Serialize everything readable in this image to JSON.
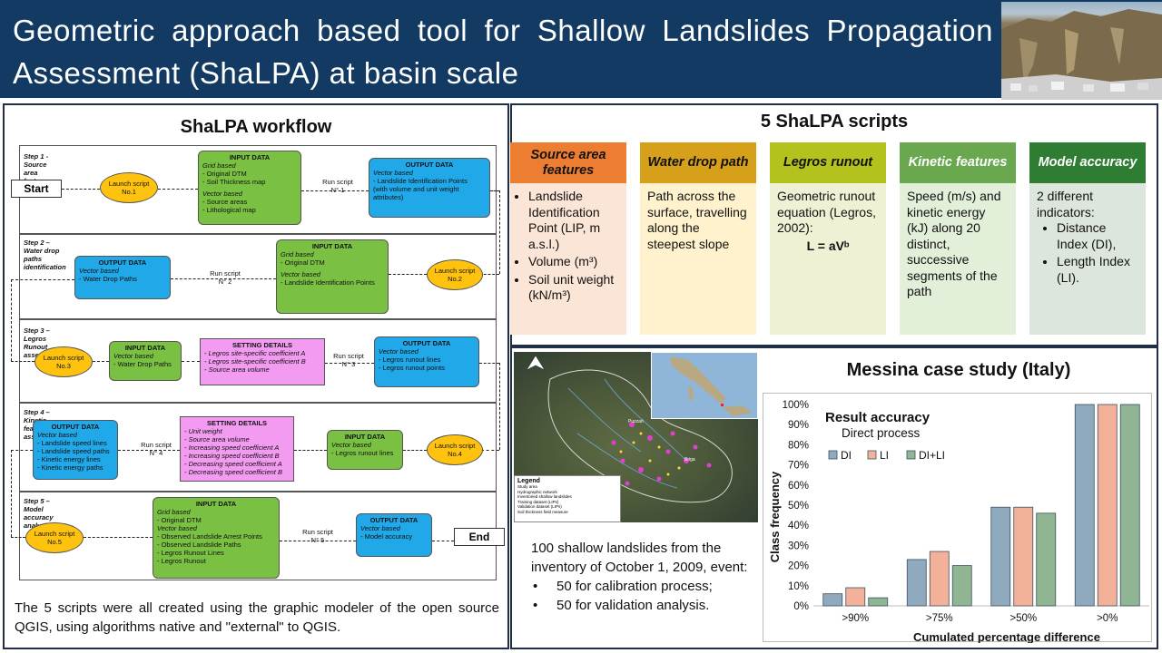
{
  "header": {
    "title": "Geometric approach based tool for Shallow Landslides Propagation Assessment (ShaLPA) at basin scale"
  },
  "workflow": {
    "title": "ShaLPA workflow",
    "start": "Start",
    "end": "End",
    "step1": {
      "title": "Step 1 - Source area features attribution",
      "launch": "Launch script No.1",
      "input": {
        "h": "INPUT DATA",
        "lines": [
          "Grid based",
          "- Original DTM",
          "- Soil Thickness map",
          "",
          "Vector based",
          "- Source areas",
          "- Lithological map"
        ]
      },
      "run": "Run script\nN° 1",
      "output": {
        "h": "OUTPUT DATA",
        "lines": [
          "Vector based",
          "- Landslide Identification Points",
          "(with volume and unit weight",
          "attributes)"
        ]
      }
    },
    "step2": {
      "title": "Step 2 – Water drop paths identification",
      "launch": "Launch script No.2",
      "input": {
        "h": "INPUT DATA",
        "lines": [
          "Grid based",
          "- Original DTM",
          "",
          "Vector based",
          "- Landslide Identification Points"
        ]
      },
      "run": "Run script\nN° 2",
      "output": {
        "h": "OUTPUT DATA",
        "lines": [
          "Vector based",
          "- Water Drop Paths"
        ]
      }
    },
    "step3": {
      "title": "Step 3 – Legros Runout assessment",
      "launch": "Launch script No.3",
      "input": {
        "h": "INPUT DATA",
        "lines": [
          "Vector based",
          "- Water Drop Paths"
        ]
      },
      "settings": {
        "h": "SETTING DETAILS",
        "lines": [
          "- Legros site-specific coefficient A",
          "- Legros site-specific coefficient B",
          "- Source area volume"
        ]
      },
      "run": "Run script\nN° 3",
      "output": {
        "h": "OUTPUT DATA",
        "lines": [
          "Vector based",
          "- Legros runout lines",
          "- Legros runout points"
        ]
      }
    },
    "step4": {
      "title": "Step 4 – Kinetic features assessment",
      "launch": "Launch script No.4",
      "input": {
        "h": "INPUT DATA",
        "lines": [
          "Vector based",
          "- Legros runout lines"
        ]
      },
      "settings": {
        "h": "SETTING DETAILS",
        "lines": [
          "- Unit weight",
          "- Source area volume",
          "- Increasing speed coefficient A",
          "- Increasing speed coefficient B",
          "- Decreasing speed coefficient A",
          "- Decreasing speed coefficient B"
        ]
      },
      "run": "Run script\nN° 4",
      "output": {
        "h": "OUTPUT DATA",
        "lines": [
          "Vector based",
          "- Landslide speed lines",
          "- Landslide speed paths",
          "- Kinetic energy lines",
          "- Kinetic energy paths"
        ]
      }
    },
    "step5": {
      "title": "Step 5 – Model accuracy analysis",
      "launch": "Launch script No.5",
      "input": {
        "h": "INPUT DATA",
        "lines": [
          "Grid based",
          "- Original DTM",
          "Vector based",
          "- Observed Landslide Arrest Points",
          "- Observed Landslide Paths",
          "- Legros Runout Lines",
          "- Legros Runout"
        ]
      },
      "run": "Run script\nN° 5",
      "output": {
        "h": "OUTPUT DATA",
        "lines": [
          "Vector based",
          "- Model accuracy"
        ]
      }
    },
    "note": "The 5 scripts were all created using the graphic modeler of the open source QGIS, using algorithms native and \"external\" to QGIS."
  },
  "scripts": {
    "title": "5 ShaLPA scripts",
    "columns": [
      {
        "header": "Source area features",
        "head_color": "#ed7d31",
        "body_color": "#fbe5d6",
        "head_text_color": "#111111"
      },
      {
        "header": "Water drop path",
        "head_color": "#d6a01a",
        "body_color": "#fff2cc",
        "head_text_color": "#111111"
      },
      {
        "header": "Legros runout",
        "head_color": "#b4c21e",
        "body_color": "#eef1d4",
        "head_text_color": "#111111"
      },
      {
        "header": "Kinetic features",
        "head_color": "#6aa84f",
        "body_color": "#e2efd9",
        "head_text_color": "#ffffff"
      },
      {
        "header": "Model accuracy",
        "head_color": "#2e7d32",
        "body_color": "#dde6dc",
        "head_text_color": "#ffffff"
      }
    ],
    "col1_items": [
      "Landslide Identification Point (LIP, m a.s.l.)",
      "Volume (m³)",
      "Soil unit weight (kN/m³)"
    ],
    "col2_text": "Path across the surface, travelling along the steepest slope",
    "col3_text": "Geometric runout equation (Legros, 2002):",
    "col3_formula": "L = aVᵇ",
    "col4_text": "Speed (m/s) and kinetic energy (kJ) along 20 distinct, successive segments of the path",
    "col5_text": "2 different indicators:",
    "col5_items": [
      "Distance Index (DI),",
      "Length Index (LI)."
    ]
  },
  "case": {
    "title": "Messina case study (Italy)",
    "intro": "100 shallow landslides from the inventory of October 1, 2009, event:",
    "items": [
      "50 for calibration process;",
      "50 for validation analysis."
    ],
    "map": {
      "legend_title": "Legend",
      "legend_items": [
        "Study area",
        "Hydrographic network",
        "Inventoried shallow landslides",
        "Training dataset (LIPs)",
        "Validation dataset (LIPs)",
        "Soil thickness field measure"
      ],
      "labels": [
        "Puzzari",
        "Briga"
      ]
    }
  },
  "chart_data": {
    "type": "bar",
    "title": "Result accuracy",
    "subtitle": "Direct process",
    "xlabel": "Cumulated percentage difference",
    "ylabel": "Class frequency",
    "categories": [
      ">90%",
      ">75%",
      ">50%",
      ">0%"
    ],
    "series": [
      {
        "name": "DI",
        "values": [
          6,
          23,
          49,
          100
        ],
        "color": "#8fa9bf"
      },
      {
        "name": "LI",
        "values": [
          9,
          27,
          49,
          100
        ],
        "color": "#f4b19a"
      },
      {
        "name": "DI+LI",
        "values": [
          4,
          20,
          46,
          100
        ],
        "color": "#8fb592"
      }
    ],
    "ylim": [
      0,
      100
    ],
    "yticks": [
      "0%",
      "10%",
      "20%",
      "30%",
      "40%",
      "50%",
      "60%",
      "70%",
      "80%",
      "90%",
      "100%"
    ],
    "grid": false,
    "legend": "top-left"
  }
}
